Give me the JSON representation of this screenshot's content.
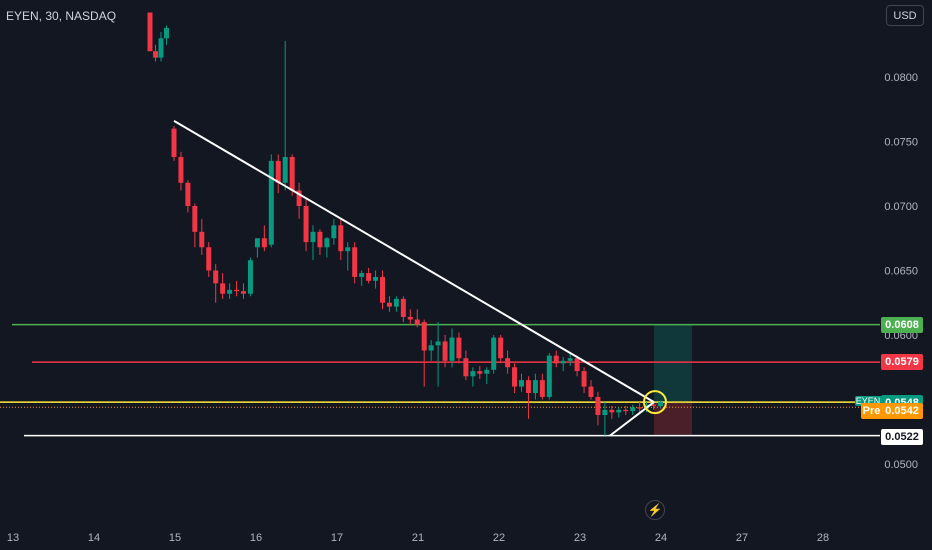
{
  "header": {
    "title": "EYEN, 30, NASDAQ",
    "currency": "USD"
  },
  "price_axis": {
    "ticks": [
      "0.0500",
      "0.0550",
      "0.0600",
      "0.0650",
      "0.0700",
      "0.0750",
      "0.0800"
    ]
  },
  "time_axis": {
    "ticks": [
      "13",
      "14",
      "15",
      "16",
      "17",
      "21",
      "22",
      "23",
      "24",
      "27",
      "28"
    ]
  },
  "tags": {
    "green_level": "0.0608",
    "red_level": "0.0579",
    "current": "0.0548",
    "pre_label": "Pre",
    "pre_value": "0.0542",
    "support": "0.0522",
    "symbol": "EYEN"
  },
  "colors": {
    "bg": "#131722",
    "up": "#089981",
    "down": "#f23645",
    "green_line": "#4caf50",
    "red_line": "#f23645",
    "yellow_line": "#ffeb3b",
    "white_line": "#ffffff",
    "orange": "#ff9800"
  },
  "chart_data": {
    "type": "candlestick",
    "title": "EYEN, 30, NASDAQ",
    "y_range": [
      0.049,
      0.0835
    ],
    "horizontal_levels": [
      {
        "value": 0.0608,
        "color": "green"
      },
      {
        "value": 0.0579,
        "color": "red"
      },
      {
        "value": 0.0548,
        "color": "yellow"
      },
      {
        "value": 0.0522,
        "color": "white"
      }
    ],
    "trendline": {
      "from": [
        15,
        0.0766
      ],
      "to": [
        24,
        0.0548
      ]
    },
    "candles": [
      [
        0.085,
        0.085,
        0.082,
        0.082
      ],
      [
        0.082,
        0.0825,
        0.0812,
        0.0815
      ],
      [
        0.0815,
        0.0835,
        0.0812,
        0.083
      ],
      [
        0.083,
        0.084,
        0.0825,
        0.0838
      ],
      [
        0.076,
        0.0762,
        0.0735,
        0.0738
      ],
      [
        0.0738,
        0.0742,
        0.0712,
        0.0718
      ],
      [
        0.0718,
        0.072,
        0.0695,
        0.07
      ],
      [
        0.07,
        0.0702,
        0.0668,
        0.068
      ],
      [
        0.068,
        0.069,
        0.0662,
        0.0668
      ],
      [
        0.0668,
        0.0672,
        0.0645,
        0.065
      ],
      [
        0.065,
        0.0655,
        0.0625,
        0.064
      ],
      [
        0.064,
        0.0648,
        0.0628,
        0.0632
      ],
      [
        0.0632,
        0.064,
        0.0628,
        0.0635
      ],
      [
        0.0635,
        0.0642,
        0.063,
        0.0634
      ],
      [
        0.0634,
        0.064,
        0.0628,
        0.0632
      ],
      [
        0.0632,
        0.066,
        0.063,
        0.0658
      ],
      [
        0.0668,
        0.0672,
        0.066,
        0.0675
      ],
      [
        0.0675,
        0.0685,
        0.0665,
        0.0668
      ],
      [
        0.067,
        0.074,
        0.0668,
        0.0735
      ],
      [
        0.0735,
        0.074,
        0.071,
        0.0718
      ],
      [
        0.0718,
        0.0828,
        0.0712,
        0.0738
      ],
      [
        0.0738,
        0.074,
        0.0708,
        0.0712
      ],
      [
        0.0712,
        0.0718,
        0.069,
        0.07
      ],
      [
        0.07,
        0.0705,
        0.0665,
        0.0672
      ],
      [
        0.0672,
        0.0685,
        0.0658,
        0.068
      ],
      [
        0.068,
        0.0682,
        0.0662,
        0.0668
      ],
      [
        0.0668,
        0.0676,
        0.066,
        0.0675
      ],
      [
        0.0675,
        0.069,
        0.067,
        0.0685
      ],
      [
        0.0685,
        0.069,
        0.0658,
        0.0665
      ],
      [
        0.0665,
        0.0672,
        0.065,
        0.0668
      ],
      [
        0.0668,
        0.0672,
        0.064,
        0.0645
      ],
      [
        0.0645,
        0.065,
        0.0638,
        0.0648
      ],
      [
        0.0648,
        0.0652,
        0.064,
        0.0642
      ],
      [
        0.0642,
        0.065,
        0.0636,
        0.0645
      ],
      [
        0.0645,
        0.065,
        0.062,
        0.0625
      ],
      [
        0.0625,
        0.063,
        0.0618,
        0.0622
      ],
      [
        0.0622,
        0.063,
        0.0618,
        0.0628
      ],
      [
        0.0628,
        0.063,
        0.061,
        0.0614
      ],
      [
        0.0614,
        0.062,
        0.0608,
        0.0612
      ],
      [
        0.0612,
        0.062,
        0.0606,
        0.0608
      ],
      [
        0.061,
        0.0612,
        0.056,
        0.0588
      ],
      [
        0.0588,
        0.0596,
        0.058,
        0.0592
      ],
      [
        0.0592,
        0.061,
        0.056,
        0.0595
      ],
      [
        0.0595,
        0.06,
        0.0575,
        0.058
      ],
      [
        0.058,
        0.0605,
        0.0575,
        0.0598
      ],
      [
        0.0598,
        0.0602,
        0.0578,
        0.0582
      ],
      [
        0.0582,
        0.0588,
        0.0565,
        0.0568
      ],
      [
        0.0568,
        0.0575,
        0.056,
        0.0572
      ],
      [
        0.0572,
        0.0576,
        0.0566,
        0.057
      ],
      [
        0.057,
        0.0575,
        0.0562,
        0.0573
      ],
      [
        0.0573,
        0.06,
        0.057,
        0.0598
      ],
      [
        0.0598,
        0.06,
        0.0578,
        0.0582
      ],
      [
        0.0582,
        0.0588,
        0.057,
        0.0575
      ],
      [
        0.0575,
        0.0578,
        0.0555,
        0.056
      ],
      [
        0.056,
        0.057,
        0.0556,
        0.0565
      ],
      [
        0.0565,
        0.0568,
        0.0535,
        0.0555
      ],
      [
        0.0555,
        0.057,
        0.055,
        0.0565
      ],
      [
        0.0565,
        0.057,
        0.055,
        0.0552
      ],
      [
        0.0552,
        0.0586,
        0.055,
        0.0584
      ],
      [
        0.0584,
        0.0588,
        0.0575,
        0.0578
      ],
      [
        0.0578,
        0.0583,
        0.0572,
        0.058
      ],
      [
        0.058,
        0.0586,
        0.0576,
        0.0582
      ],
      [
        0.0582,
        0.0584,
        0.0568,
        0.0572
      ],
      [
        0.0572,
        0.0575,
        0.0555,
        0.056
      ],
      [
        0.056,
        0.0565,
        0.055,
        0.0552
      ],
      [
        0.0552,
        0.0556,
        0.053,
        0.0538
      ],
      [
        0.0538,
        0.0548,
        0.0522,
        0.0542
      ],
      [
        0.0542,
        0.0545,
        0.0535,
        0.054
      ],
      [
        0.054,
        0.0544,
        0.0536,
        0.0542
      ],
      [
        0.0542,
        0.0545,
        0.0538,
        0.0541
      ],
      [
        0.0541,
        0.0546,
        0.0538,
        0.0544
      ],
      [
        0.0544,
        0.0548,
        0.054,
        0.0543
      ],
      [
        0.0543,
        0.0548,
        0.054,
        0.0546
      ],
      [
        0.0546,
        0.0549,
        0.0542,
        0.0545
      ],
      [
        0.0545,
        0.0549,
        0.0543,
        0.0548
      ]
    ]
  }
}
